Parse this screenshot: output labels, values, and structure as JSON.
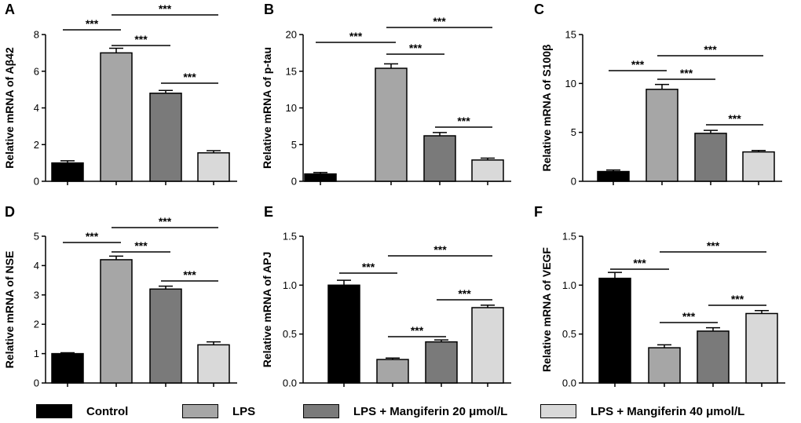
{
  "legend": {
    "items": [
      {
        "label": "Control",
        "color": "#000000"
      },
      {
        "label": "LPS",
        "color": "#a6a6a6"
      },
      {
        "label": "LPS + Mangiferin 20 μmol/L",
        "color": "#7a7a7a"
      },
      {
        "label": "LPS + Mangiferin 40 μmol/L",
        "color": "#d9d9d9"
      }
    ]
  },
  "chart_data": [
    {
      "panel": "A",
      "type": "bar",
      "ylabel": "Relative mRNA of Aβ42",
      "categories": [
        "Control",
        "LPS",
        "LPS + Mangiferin 20 μmol/L",
        "LPS + Mangiferin 40 μmol/L"
      ],
      "values": [
        1.0,
        7.0,
        4.8,
        1.55
      ],
      "errors": [
        0.12,
        0.25,
        0.15,
        0.12
      ],
      "ylim": [
        0,
        8
      ],
      "yticks": [
        "0",
        "2",
        "4",
        "6",
        "8"
      ],
      "significance": [
        {
          "from": 0,
          "to": 1,
          "label": "***"
        },
        {
          "from": 1,
          "to": 2,
          "label": "***"
        },
        {
          "from": 1,
          "to": 3,
          "label": "***"
        },
        {
          "from": 2,
          "to": 3,
          "label": "***"
        }
      ]
    },
    {
      "panel": "B",
      "type": "bar",
      "ylabel": "Relative mRNA of p-tau",
      "categories": [
        "Control",
        "LPS",
        "LPS + Mangiferin 20 μmol/L",
        "LPS + Mangiferin 40 μmol/L"
      ],
      "values": [
        1.0,
        15.4,
        6.2,
        2.9
      ],
      "errors": [
        0.2,
        0.6,
        0.45,
        0.25
      ],
      "ylim": [
        0,
        20
      ],
      "yticks": [
        "0",
        "5",
        "10",
        "15",
        "20"
      ],
      "significance": [
        {
          "from": 0,
          "to": 1,
          "label": "***"
        },
        {
          "from": 1,
          "to": 2,
          "label": "***"
        },
        {
          "from": 1,
          "to": 3,
          "label": "***"
        },
        {
          "from": 2,
          "to": 3,
          "label": "***"
        }
      ]
    },
    {
      "panel": "C",
      "type": "bar",
      "ylabel": "Relative mRNA of S100β",
      "categories": [
        "Control",
        "LPS",
        "LPS + Mangiferin 20 μmol/L",
        "LPS + Mangiferin 40 μmol/L"
      ],
      "values": [
        1.0,
        9.4,
        4.9,
        3.0
      ],
      "errors": [
        0.15,
        0.5,
        0.3,
        0.15
      ],
      "ylim": [
        0,
        15
      ],
      "yticks": [
        "0",
        "5",
        "10",
        "15"
      ],
      "significance": [
        {
          "from": 0,
          "to": 1,
          "label": "***"
        },
        {
          "from": 1,
          "to": 2,
          "label": "***"
        },
        {
          "from": 1,
          "to": 3,
          "label": "***"
        },
        {
          "from": 2,
          "to": 3,
          "label": "***"
        }
      ]
    },
    {
      "panel": "D",
      "type": "bar",
      "ylabel": "Relative mRNA of NSE",
      "categories": [
        "Control",
        "LPS",
        "LPS + Mangiferin 20 μmol/L",
        "LPS + Mangiferin 40 μmol/L"
      ],
      "values": [
        1.0,
        4.2,
        3.2,
        1.3
      ],
      "errors": [
        0.03,
        0.12,
        0.1,
        0.1
      ],
      "ylim": [
        0,
        5
      ],
      "yticks": [
        "0",
        "1",
        "2",
        "3",
        "4",
        "5"
      ],
      "significance": [
        {
          "from": 0,
          "to": 1,
          "label": "***"
        },
        {
          "from": 1,
          "to": 2,
          "label": "***"
        },
        {
          "from": 1,
          "to": 3,
          "label": "***"
        },
        {
          "from": 2,
          "to": 3,
          "label": "***"
        }
      ]
    },
    {
      "panel": "E",
      "type": "bar",
      "ylabel": "Relative mRNA of APJ",
      "categories": [
        "Control",
        "LPS",
        "LPS + Mangiferin 20 μmol/L",
        "LPS + Mangiferin 40 μmol/L"
      ],
      "values": [
        1.0,
        0.24,
        0.42,
        0.77
      ],
      "errors": [
        0.05,
        0.015,
        0.02,
        0.025
      ],
      "ylim": [
        0,
        1.5
      ],
      "yticks": [
        "0.0",
        "0.5",
        "1.0",
        "1.5"
      ],
      "significance": [
        {
          "from": 0,
          "to": 1,
          "label": "***"
        },
        {
          "from": 1,
          "to": 2,
          "label": "***"
        },
        {
          "from": 1,
          "to": 3,
          "label": "***"
        },
        {
          "from": 2,
          "to": 3,
          "label": "***"
        }
      ]
    },
    {
      "panel": "F",
      "type": "bar",
      "ylabel": "Relative mRNA of VEGF",
      "categories": [
        "Control",
        "LPS",
        "LPS + Mangiferin 20 μmol/L",
        "LPS + Mangiferin 40 μmol/L"
      ],
      "values": [
        1.07,
        0.36,
        0.53,
        0.71
      ],
      "errors": [
        0.06,
        0.03,
        0.035,
        0.03
      ],
      "ylim": [
        0,
        1.5
      ],
      "yticks": [
        "0.0",
        "0.5",
        "1.0",
        "1.5"
      ],
      "significance": [
        {
          "from": 0,
          "to": 1,
          "label": "***"
        },
        {
          "from": 1,
          "to": 2,
          "label": "***"
        },
        {
          "from": 1,
          "to": 3,
          "label": "***"
        },
        {
          "from": 2,
          "to": 3,
          "label": "***"
        }
      ]
    }
  ]
}
